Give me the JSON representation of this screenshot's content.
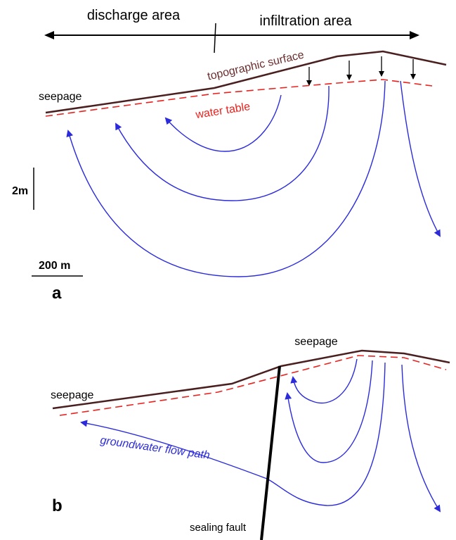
{
  "panel_a": {
    "label": "a",
    "discharge": "discharge area",
    "infiltration": "infiltration area",
    "topographic": "topographic surface",
    "seepage": "seepage",
    "water_table": "water table",
    "vertical_scale": "2m",
    "horizontal_scale": "200 m"
  },
  "panel_b": {
    "label": "b",
    "seepage_top": "seepage",
    "seepage_left": "seepage",
    "flow_path": "groundwater flow path",
    "fault": "sealing fault"
  }
}
